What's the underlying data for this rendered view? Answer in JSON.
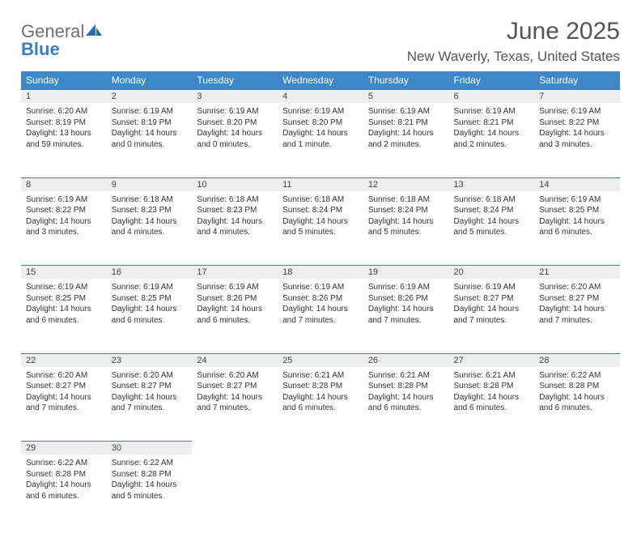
{
  "logo": {
    "textGray": "General",
    "textBlue": "Blue"
  },
  "title": "June 2025",
  "subtitle": "New Waverly, Texas, United States",
  "colors": {
    "headerBg": "#3e87c7",
    "dayBg": "#eceeef",
    "dayBorder": "#4a7ba8",
    "logoGray": "#6f6f6f",
    "logoBlue": "#3a7fc4"
  },
  "weekdays": [
    "Sunday",
    "Monday",
    "Tuesday",
    "Wednesday",
    "Thursday",
    "Friday",
    "Saturday"
  ],
  "weeks": [
    [
      {
        "n": "1",
        "sr": "6:20 AM",
        "ss": "8:19 PM",
        "dl": "13 hours and 59 minutes."
      },
      {
        "n": "2",
        "sr": "6:19 AM",
        "ss": "8:19 PM",
        "dl": "14 hours and 0 minutes."
      },
      {
        "n": "3",
        "sr": "6:19 AM",
        "ss": "8:20 PM",
        "dl": "14 hours and 0 minutes."
      },
      {
        "n": "4",
        "sr": "6:19 AM",
        "ss": "8:20 PM",
        "dl": "14 hours and 1 minute."
      },
      {
        "n": "5",
        "sr": "6:19 AM",
        "ss": "8:21 PM",
        "dl": "14 hours and 2 minutes."
      },
      {
        "n": "6",
        "sr": "6:19 AM",
        "ss": "8:21 PM",
        "dl": "14 hours and 2 minutes."
      },
      {
        "n": "7",
        "sr": "6:19 AM",
        "ss": "8:22 PM",
        "dl": "14 hours and 3 minutes."
      }
    ],
    [
      {
        "n": "8",
        "sr": "6:19 AM",
        "ss": "8:22 PM",
        "dl": "14 hours and 3 minutes."
      },
      {
        "n": "9",
        "sr": "6:18 AM",
        "ss": "8:23 PM",
        "dl": "14 hours and 4 minutes."
      },
      {
        "n": "10",
        "sr": "6:18 AM",
        "ss": "8:23 PM",
        "dl": "14 hours and 4 minutes."
      },
      {
        "n": "11",
        "sr": "6:18 AM",
        "ss": "8:24 PM",
        "dl": "14 hours and 5 minutes."
      },
      {
        "n": "12",
        "sr": "6:18 AM",
        "ss": "8:24 PM",
        "dl": "14 hours and 5 minutes."
      },
      {
        "n": "13",
        "sr": "6:18 AM",
        "ss": "8:24 PM",
        "dl": "14 hours and 5 minutes."
      },
      {
        "n": "14",
        "sr": "6:19 AM",
        "ss": "8:25 PM",
        "dl": "14 hours and 6 minutes."
      }
    ],
    [
      {
        "n": "15",
        "sr": "6:19 AM",
        "ss": "8:25 PM",
        "dl": "14 hours and 6 minutes."
      },
      {
        "n": "16",
        "sr": "6:19 AM",
        "ss": "8:25 PM",
        "dl": "14 hours and 6 minutes."
      },
      {
        "n": "17",
        "sr": "6:19 AM",
        "ss": "8:26 PM",
        "dl": "14 hours and 6 minutes."
      },
      {
        "n": "18",
        "sr": "6:19 AM",
        "ss": "8:26 PM",
        "dl": "14 hours and 7 minutes."
      },
      {
        "n": "19",
        "sr": "6:19 AM",
        "ss": "8:26 PM",
        "dl": "14 hours and 7 minutes."
      },
      {
        "n": "20",
        "sr": "6:19 AM",
        "ss": "8:27 PM",
        "dl": "14 hours and 7 minutes."
      },
      {
        "n": "21",
        "sr": "6:20 AM",
        "ss": "8:27 PM",
        "dl": "14 hours and 7 minutes."
      }
    ],
    [
      {
        "n": "22",
        "sr": "6:20 AM",
        "ss": "8:27 PM",
        "dl": "14 hours and 7 minutes."
      },
      {
        "n": "23",
        "sr": "6:20 AM",
        "ss": "8:27 PM",
        "dl": "14 hours and 7 minutes."
      },
      {
        "n": "24",
        "sr": "6:20 AM",
        "ss": "8:27 PM",
        "dl": "14 hours and 7 minutes."
      },
      {
        "n": "25",
        "sr": "6:21 AM",
        "ss": "8:28 PM",
        "dl": "14 hours and 6 minutes."
      },
      {
        "n": "26",
        "sr": "6:21 AM",
        "ss": "8:28 PM",
        "dl": "14 hours and 6 minutes."
      },
      {
        "n": "27",
        "sr": "6:21 AM",
        "ss": "8:28 PM",
        "dl": "14 hours and 6 minutes."
      },
      {
        "n": "28",
        "sr": "6:22 AM",
        "ss": "8:28 PM",
        "dl": "14 hours and 6 minutes."
      }
    ],
    [
      {
        "n": "29",
        "sr": "6:22 AM",
        "ss": "8:28 PM",
        "dl": "14 hours and 6 minutes."
      },
      {
        "n": "30",
        "sr": "6:22 AM",
        "ss": "8:28 PM",
        "dl": "14 hours and 5 minutes."
      },
      null,
      null,
      null,
      null,
      null
    ]
  ],
  "labels": {
    "sunrise": "Sunrise: ",
    "sunset": "Sunset: ",
    "daylight": "Daylight: "
  }
}
